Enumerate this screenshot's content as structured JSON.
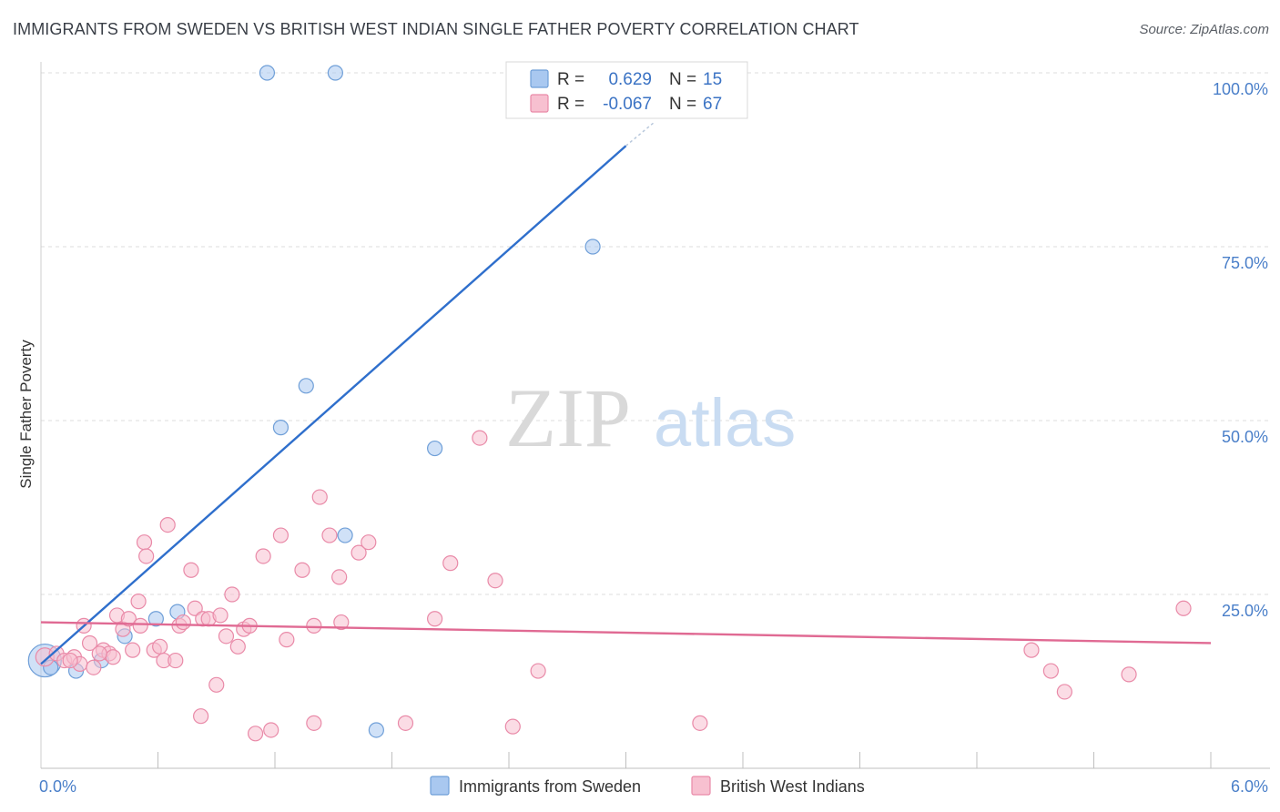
{
  "header": {
    "title": "IMMIGRANTS FROM SWEDEN VS BRITISH WEST INDIAN SINGLE FATHER POVERTY CORRELATION CHART",
    "source": "Source: ZipAtlas.com"
  },
  "watermark": {
    "zip": "ZIP",
    "atlas": "atlas"
  },
  "chart_data": {
    "type": "scatter",
    "ylabel": "Single Father Poverty",
    "xlim": [
      0,
      6
    ],
    "ylim": [
      0,
      105
    ],
    "x_tick_labels": [
      {
        "value": 0,
        "label": "0.0%"
      },
      {
        "value": 6,
        "label": "6.0%"
      }
    ],
    "y_tick_labels": [
      {
        "value": 25,
        "label": "25.0%"
      },
      {
        "value": 50,
        "label": "50.0%"
      },
      {
        "value": 75,
        "label": "75.0%"
      },
      {
        "value": 100,
        "label": "100.0%"
      }
    ],
    "grid": true,
    "legend_position": "top-center",
    "series": [
      {
        "name": "Immigrants from Sweden",
        "color": "#a9c8f0",
        "stroke": "#6f9fd8",
        "line_color": "#2f6fcc",
        "R": "0.629",
        "N": "15",
        "trend": {
          "x0": 0.0,
          "y0": 15.0,
          "x1": 3.0,
          "y1": 89.5,
          "dash_to_x": 3.15,
          "dash_to_y": 93.0
        },
        "points": [
          [
            0.02,
            15.5,
            18
          ],
          [
            0.18,
            14.0,
            8
          ],
          [
            0.31,
            15.5,
            8
          ],
          [
            0.43,
            19.0,
            8
          ],
          [
            0.59,
            21.5,
            8
          ],
          [
            0.7,
            22.5,
            8
          ],
          [
            1.16,
            100.0,
            8
          ],
          [
            1.51,
            100.0,
            8
          ],
          [
            1.23,
            49.0,
            8
          ],
          [
            1.36,
            55.0,
            8
          ],
          [
            1.56,
            33.5,
            8
          ],
          [
            2.02,
            46.0,
            8
          ],
          [
            2.83,
            75.0,
            8
          ],
          [
            1.72,
            5.5,
            8
          ],
          [
            0.05,
            14.5,
            8
          ]
        ]
      },
      {
        "name": "British West Indians",
        "color": "#f7c0d0",
        "stroke": "#e98aa8",
        "line_color": "#e06a93",
        "R": "-0.067",
        "N": "67",
        "trend": {
          "x0": 0.0,
          "y0": 21.0,
          "x1": 6.0,
          "y1": 18.0
        },
        "points": [
          [
            0.02,
            16.0,
            10
          ],
          [
            0.08,
            16.5,
            8
          ],
          [
            0.12,
            15.5,
            8
          ],
          [
            0.17,
            16.0,
            8
          ],
          [
            0.2,
            15.0,
            8
          ],
          [
            0.22,
            20.5,
            8
          ],
          [
            0.25,
            18.0,
            8
          ],
          [
            0.27,
            14.5,
            8
          ],
          [
            0.32,
            17.0,
            8
          ],
          [
            0.35,
            16.5,
            8
          ],
          [
            0.37,
            16.0,
            8
          ],
          [
            0.39,
            22.0,
            8
          ],
          [
            0.42,
            20.0,
            8
          ],
          [
            0.45,
            21.5,
            8
          ],
          [
            0.47,
            17.0,
            8
          ],
          [
            0.5,
            24.0,
            8
          ],
          [
            0.51,
            20.5,
            8
          ],
          [
            0.53,
            32.5,
            8
          ],
          [
            0.54,
            30.5,
            8
          ],
          [
            0.58,
            17.0,
            8
          ],
          [
            0.61,
            17.5,
            8
          ],
          [
            0.63,
            15.5,
            8
          ],
          [
            0.65,
            35.0,
            8
          ],
          [
            0.69,
            15.5,
            8
          ],
          [
            0.71,
            20.5,
            8
          ],
          [
            0.73,
            21.0,
            8
          ],
          [
            0.77,
            28.5,
            8
          ],
          [
            0.79,
            23.0,
            8
          ],
          [
            0.82,
            7.5,
            8
          ],
          [
            0.83,
            21.5,
            8
          ],
          [
            0.86,
            21.5,
            8
          ],
          [
            0.9,
            12.0,
            8
          ],
          [
            0.92,
            22.0,
            8
          ],
          [
            0.95,
            19.0,
            8
          ],
          [
            0.98,
            25.0,
            8
          ],
          [
            1.01,
            17.5,
            8
          ],
          [
            1.04,
            20.0,
            8
          ],
          [
            1.07,
            20.5,
            8
          ],
          [
            1.1,
            5.0,
            8
          ],
          [
            1.14,
            30.5,
            8
          ],
          [
            1.18,
            5.5,
            8
          ],
          [
            1.23,
            33.5,
            8
          ],
          [
            1.26,
            18.5,
            8
          ],
          [
            1.34,
            28.5,
            8
          ],
          [
            1.4,
            20.5,
            8
          ],
          [
            1.4,
            6.5,
            8
          ],
          [
            1.43,
            39.0,
            8
          ],
          [
            1.48,
            33.5,
            8
          ],
          [
            1.53,
            27.5,
            8
          ],
          [
            1.54,
            21.0,
            8
          ],
          [
            1.63,
            31.0,
            8
          ],
          [
            1.68,
            32.5,
            8
          ],
          [
            1.87,
            6.5,
            8
          ],
          [
            2.02,
            21.5,
            8
          ],
          [
            2.1,
            29.5,
            8
          ],
          [
            2.25,
            47.5,
            8
          ],
          [
            2.33,
            27.0,
            8
          ],
          [
            2.42,
            6.0,
            8
          ],
          [
            2.55,
            14.0,
            8
          ],
          [
            3.38,
            6.5,
            8
          ],
          [
            5.08,
            17.0,
            8
          ],
          [
            5.18,
            14.0,
            8
          ],
          [
            5.25,
            11.0,
            8
          ],
          [
            5.58,
            13.5,
            8
          ],
          [
            5.86,
            23.0,
            8
          ],
          [
            0.3,
            16.5,
            8
          ],
          [
            0.15,
            15.5,
            8
          ]
        ]
      }
    ]
  }
}
